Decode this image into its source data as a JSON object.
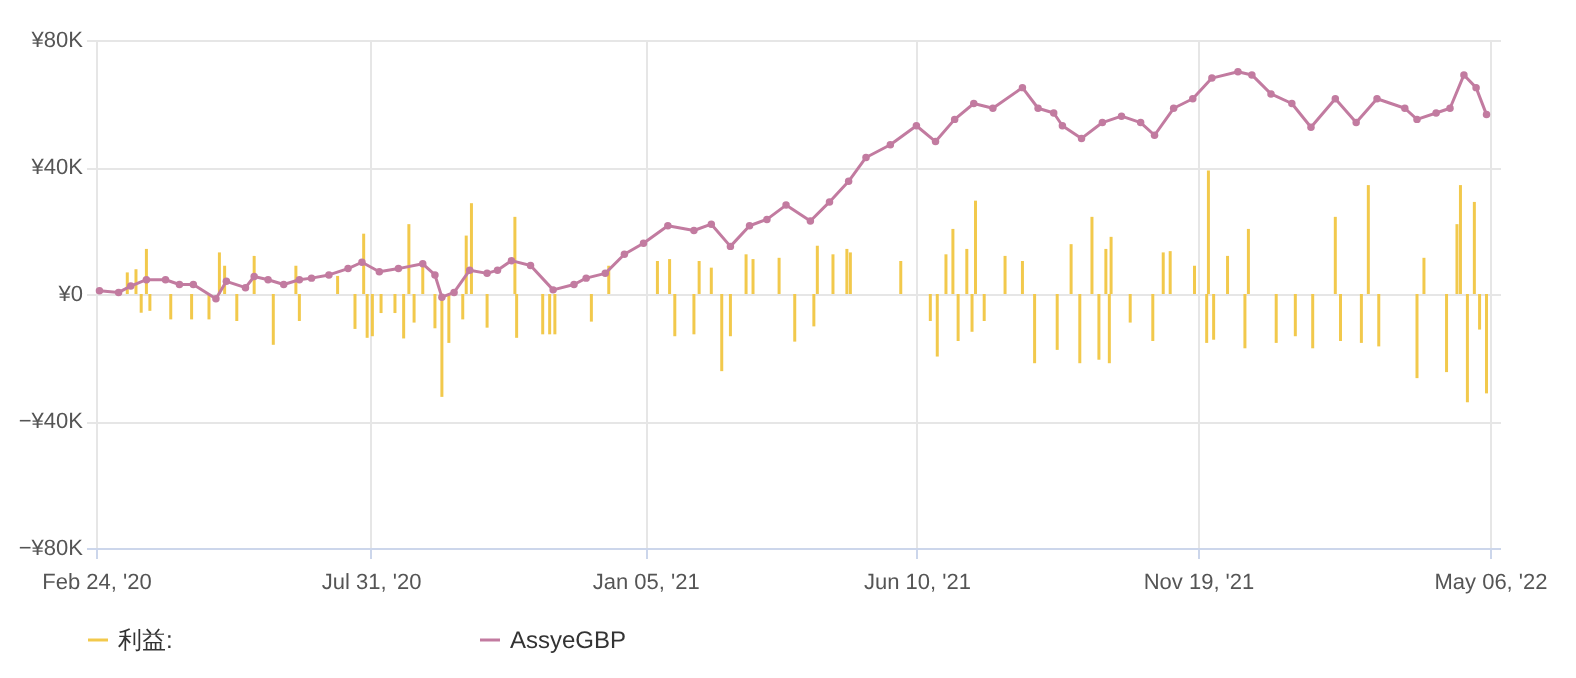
{
  "chart_data": {
    "type": "bar",
    "legend": "bottom",
    "grid": true,
    "marker": "circle",
    "xlim": [
      "2020-02-24",
      "2022-05-06"
    ],
    "xticks": [
      {
        "value": "2020-02-24",
        "label": "Feb 24, '20"
      },
      {
        "value": "2020-07-31",
        "label": "Jul 31, '20"
      },
      {
        "value": "2021-01-05",
        "label": "Jan 05, '21"
      },
      {
        "value": "2021-06-10",
        "label": "Jun 10, '21"
      },
      {
        "value": "2021-11-19",
        "label": "Nov 19, '21"
      },
      {
        "value": "2022-05-06",
        "label": "May 06, '22"
      }
    ],
    "ylim": [
      -80000,
      80000
    ],
    "yticks": [
      {
        "value": -80000,
        "label": "−¥80K"
      },
      {
        "value": -40000,
        "label": "−¥40K"
      },
      {
        "value": 0,
        "label": "¥0"
      },
      {
        "value": 40000,
        "label": "¥40K"
      },
      {
        "value": 80000,
        "label": "¥80K"
      }
    ],
    "series": [
      {
        "name": "利益:",
        "color": "#f2c94c",
        "x": [
          "2020-03-13",
          "2020-03-18",
          "2020-03-21",
          "2020-03-24",
          "2020-03-26",
          "2020-04-07",
          "2020-04-19",
          "2020-04-29",
          "2020-05-05",
          "2020-05-08",
          "2020-05-15",
          "2020-05-25",
          "2020-06-05",
          "2020-06-18",
          "2020-06-20",
          "2020-07-12",
          "2020-07-22",
          "2020-07-27",
          "2020-07-29",
          "2020-08-01",
          "2020-08-06",
          "2020-08-14",
          "2020-08-19",
          "2020-08-22",
          "2020-08-25",
          "2020-08-30",
          "2020-09-06",
          "2020-09-10",
          "2020-09-14",
          "2020-09-22",
          "2020-09-24",
          "2020-09-27",
          "2020-10-06",
          "2020-10-22",
          "2020-10-23",
          "2020-11-07",
          "2020-11-11",
          "2020-11-14",
          "2020-12-05",
          "2020-12-15",
          "2021-01-12",
          "2021-01-19",
          "2021-01-22",
          "2021-02-02",
          "2021-02-05",
          "2021-02-12",
          "2021-02-18",
          "2021-02-23",
          "2021-03-04",
          "2021-03-08",
          "2021-03-23",
          "2021-04-01",
          "2021-04-12",
          "2021-04-14",
          "2021-04-23",
          "2021-05-01",
          "2021-05-03",
          "2021-06-01",
          "2021-06-18",
          "2021-06-22",
          "2021-06-27",
          "2021-07-01",
          "2021-07-04",
          "2021-07-09",
          "2021-07-12",
          "2021-07-14",
          "2021-07-19",
          "2021-07-31",
          "2021-08-10",
          "2021-08-17",
          "2021-08-30",
          "2021-09-07",
          "2021-09-12",
          "2021-09-19",
          "2021-09-23",
          "2021-09-27",
          "2021-09-29",
          "2021-09-30",
          "2021-10-11",
          "2021-10-24",
          "2021-10-30",
          "2021-11-03",
          "2021-11-17",
          "2021-11-24",
          "2021-11-25",
          "2021-11-28",
          "2021-12-06",
          "2021-12-16",
          "2021-12-18",
          "2022-01-03",
          "2022-01-14",
          "2022-01-24",
          "2022-02-06",
          "2022-02-09",
          "2022-02-21",
          "2022-02-25",
          "2022-03-03",
          "2022-03-25",
          "2022-03-29",
          "2022-04-11",
          "2022-04-17",
          "2022-04-19",
          "2022-04-23",
          "2022-04-27",
          "2022-04-30",
          "2022-05-04"
        ],
        "values": [
          6800,
          7800,
          -5900,
          14200,
          -5300,
          -8000,
          -8000,
          -8000,
          13100,
          8900,
          -8500,
          12000,
          -16000,
          8900,
          -8500,
          5700,
          -11000,
          19000,
          -13800,
          -13300,
          -6000,
          -6000,
          -14000,
          22000,
          -9000,
          10000,
          -10800,
          -32400,
          -15400,
          -8000,
          18400,
          28600,
          -10600,
          24300,
          -13800,
          -12700,
          -12700,
          -12700,
          -8700,
          8900,
          10400,
          11000,
          -13300,
          -12700,
          10400,
          8300,
          -24300,
          -13300,
          12500,
          11000,
          11400,
          -15000,
          -10200,
          15200,
          12500,
          14200,
          13100,
          10400,
          -8500,
          -19700,
          12500,
          20500,
          -14800,
          14200,
          -11900,
          29400,
          -8500,
          12000,
          10400,
          -21800,
          -17600,
          15700,
          -21800,
          24300,
          -20700,
          14200,
          -21800,
          18000,
          -9000,
          -14800,
          13100,
          13500,
          8900,
          -15400,
          38900,
          -14400,
          12000,
          -17100,
          20500,
          -15400,
          -13300,
          -17100,
          24300,
          -14800,
          -15400,
          34300,
          -16500,
          -26500,
          11400,
          -24600,
          22000,
          34300,
          -34100,
          29000,
          -11200,
          -31300
        ]
      },
      {
        "name": "AssyeGBP",
        "type": "line",
        "color": "#c27ba0",
        "x": [
          "2020-02-26",
          "2020-03-08",
          "2020-03-15",
          "2020-03-24",
          "2020-04-04",
          "2020-04-12",
          "2020-04-20",
          "2020-05-03",
          "2020-05-09",
          "2020-05-20",
          "2020-05-25",
          "2020-06-02",
          "2020-06-11",
          "2020-06-20",
          "2020-06-27",
          "2020-07-07",
          "2020-07-18",
          "2020-07-26",
          "2020-08-05",
          "2020-08-16",
          "2020-08-30",
          "2020-09-06",
          "2020-09-10",
          "2020-09-17",
          "2020-09-26",
          "2020-10-06",
          "2020-10-12",
          "2020-10-20",
          "2020-10-31",
          "2020-11-13",
          "2020-11-25",
          "2020-12-02",
          "2020-12-13",
          "2020-12-24",
          "2021-01-04",
          "2021-01-18",
          "2021-02-02",
          "2021-02-12",
          "2021-02-23",
          "2021-03-06",
          "2021-03-16",
          "2021-03-27",
          "2021-04-10",
          "2021-04-21",
          "2021-05-02",
          "2021-05-12",
          "2021-05-26",
          "2021-06-10",
          "2021-06-21",
          "2021-07-02",
          "2021-07-13",
          "2021-07-24",
          "2021-08-10",
          "2021-08-19",
          "2021-08-28",
          "2021-09-02",
          "2021-09-13",
          "2021-09-25",
          "2021-10-06",
          "2021-10-17",
          "2021-10-25",
          "2021-11-05",
          "2021-11-16",
          "2021-11-27",
          "2021-12-12",
          "2021-12-20",
          "2021-12-31",
          "2022-01-12",
          "2022-01-23",
          "2022-02-06",
          "2022-02-18",
          "2022-03-02",
          "2022-03-18",
          "2022-03-25",
          "2022-04-05",
          "2022-04-13",
          "2022-04-21",
          "2022-04-28",
          "2022-05-04"
        ],
        "values": [
          1000,
          500,
          2500,
          4500,
          4500,
          3000,
          3000,
          -1500,
          4000,
          2000,
          5500,
          4500,
          3000,
          4500,
          5000,
          6000,
          8000,
          10000,
          7000,
          8000,
          9500,
          6000,
          -1000,
          500,
          7500,
          6500,
          7500,
          10500,
          9000,
          1300,
          3000,
          5000,
          6500,
          12500,
          16000,
          21500,
          20000,
          22000,
          15000,
          21500,
          23500,
          28000,
          23000,
          29000,
          35500,
          43000,
          47000,
          53000,
          48000,
          55000,
          60000,
          58500,
          65000,
          58500,
          57000,
          53000,
          49000,
          54000,
          56000,
          54000,
          50000,
          58500,
          61500,
          68000,
          70000,
          69000,
          63000,
          60000,
          52500,
          61500,
          54000,
          61500,
          58500,
          55000,
          57000,
          58500,
          69000,
          65000,
          56500
        ]
      }
    ]
  }
}
